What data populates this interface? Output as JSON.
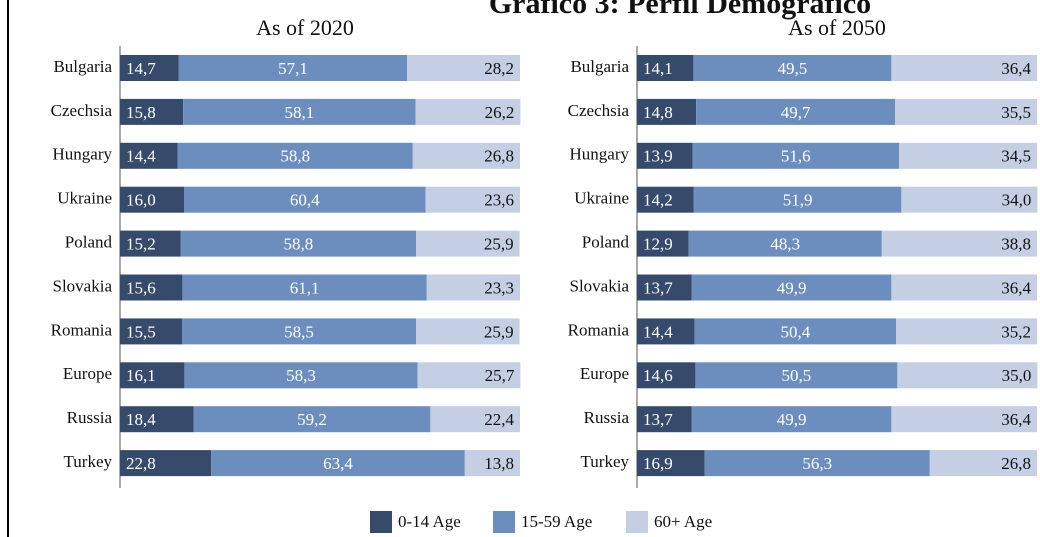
{
  "title": "Gráfico 3: Perfil Demográfico",
  "legend": {
    "entries": [
      "0-14 Age",
      "15-59 Age",
      "60+ Age"
    ],
    "position": "bottom"
  },
  "chart_data": [
    {
      "type": "stacked-bar-horizontal",
      "title": "As of 2020",
      "categories": [
        "Bulgaria",
        "Czechsia",
        "Hungary",
        "Ukraine",
        "Poland",
        "Slovakia",
        "Romania",
        "Europe",
        "Russia",
        "Turkey"
      ],
      "xlim": [
        0,
        100
      ],
      "series": [
        {
          "color": "#364b6b",
          "values": [
            14.7,
            15.8,
            14.4,
            16.0,
            15.2,
            15.6,
            15.5,
            16.1,
            18.4,
            22.8
          ],
          "value_labels": [
            "14,7",
            "15,8",
            "14,4",
            "16,0",
            "15,2",
            "15,6",
            "15,5",
            "16,1",
            "18,4",
            "22,8"
          ]
        },
        {
          "color": "#6c8ebf",
          "values": [
            57.1,
            58.1,
            58.8,
            60.4,
            58.8,
            61.1,
            58.5,
            58.3,
            59.2,
            63.4
          ],
          "value_labels": [
            "57,1",
            "58,1",
            "58,8",
            "60,4",
            "58,8",
            "61,1",
            "58,5",
            "58,3",
            "59,2",
            "63,4"
          ]
        },
        {
          "color": "#c5cfe3",
          "values": [
            28.2,
            26.2,
            26.8,
            23.6,
            25.9,
            23.3,
            25.9,
            25.7,
            22.4,
            13.8
          ],
          "value_labels": [
            "28,2",
            "26,2",
            "26,8",
            "23,6",
            "25,9",
            "23,3",
            "25,9",
            "25,7",
            "22,4",
            "13,8"
          ]
        }
      ]
    },
    {
      "type": "stacked-bar-horizontal",
      "title": "As of 2050",
      "categories": [
        "Bulgaria",
        "Czechsia",
        "Hungary",
        "Ukraine",
        "Poland",
        "Slovakia",
        "Romania",
        "Europe",
        "Russia",
        "Turkey"
      ],
      "xlim": [
        0,
        100
      ],
      "series": [
        {
          "color": "#364b6b",
          "values": [
            14.1,
            14.8,
            13.9,
            14.2,
            12.9,
            13.7,
            14.4,
            14.6,
            13.7,
            16.9
          ],
          "value_labels": [
            "14,1",
            "14,8",
            "13,9",
            "14,2",
            "12,9",
            "13,7",
            "14,4",
            "14,6",
            "13,7",
            "16,9"
          ]
        },
        {
          "color": "#6c8ebf",
          "values": [
            49.5,
            49.7,
            51.6,
            51.9,
            48.3,
            49.9,
            50.4,
            50.5,
            49.9,
            56.3
          ],
          "value_labels": [
            "49,5",
            "49,7",
            "51,6",
            "51,9",
            "48,3",
            "49,9",
            "50,4",
            "50,5",
            "49,9",
            "56,3"
          ]
        },
        {
          "color": "#c5cfe3",
          "values": [
            36.4,
            35.5,
            34.5,
            34.0,
            38.8,
            36.4,
            35.2,
            35.0,
            36.4,
            26.8
          ],
          "value_labels": [
            "36,4",
            "35,5",
            "34,5",
            "34,0",
            "38,8",
            "36,4",
            "35,2",
            "35,0",
            "36,4",
            "26,8"
          ]
        }
      ]
    }
  ]
}
